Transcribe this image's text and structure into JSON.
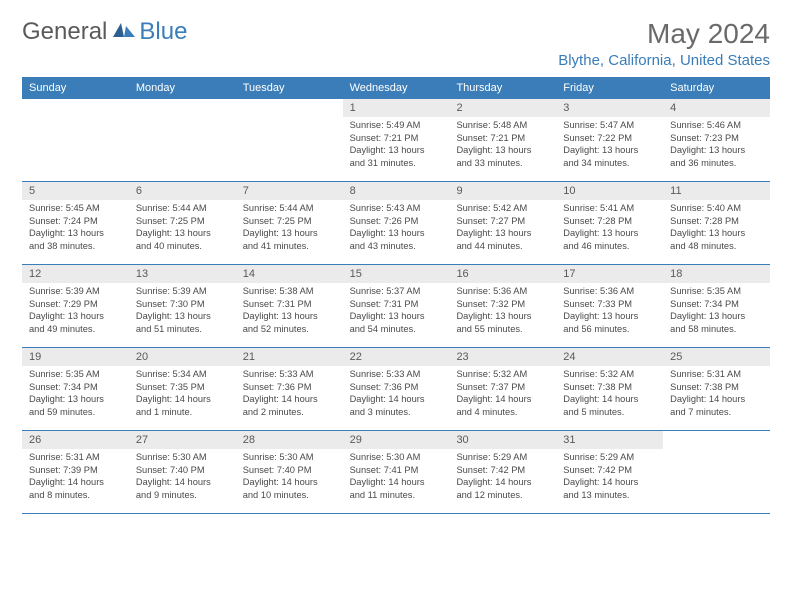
{
  "logo": {
    "text1": "General",
    "text2": "Blue"
  },
  "header": {
    "title": "May 2024",
    "location": "Blythe, California, United States"
  },
  "colors": {
    "accent": "#3a7db8",
    "header_text": "#ffffff",
    "daynum_bg": "#ebebeb",
    "body_text": "#4a4a4a",
    "title_text": "#6a6a6a"
  },
  "day_names": [
    "Sunday",
    "Monday",
    "Tuesday",
    "Wednesday",
    "Thursday",
    "Friday",
    "Saturday"
  ],
  "weeks": [
    [
      null,
      null,
      null,
      {
        "n": "1",
        "rise": "Sunrise: 5:49 AM",
        "set": "Sunset: 7:21 PM",
        "dl1": "Daylight: 13 hours",
        "dl2": "and 31 minutes."
      },
      {
        "n": "2",
        "rise": "Sunrise: 5:48 AM",
        "set": "Sunset: 7:21 PM",
        "dl1": "Daylight: 13 hours",
        "dl2": "and 33 minutes."
      },
      {
        "n": "3",
        "rise": "Sunrise: 5:47 AM",
        "set": "Sunset: 7:22 PM",
        "dl1": "Daylight: 13 hours",
        "dl2": "and 34 minutes."
      },
      {
        "n": "4",
        "rise": "Sunrise: 5:46 AM",
        "set": "Sunset: 7:23 PM",
        "dl1": "Daylight: 13 hours",
        "dl2": "and 36 minutes."
      }
    ],
    [
      {
        "n": "5",
        "rise": "Sunrise: 5:45 AM",
        "set": "Sunset: 7:24 PM",
        "dl1": "Daylight: 13 hours",
        "dl2": "and 38 minutes."
      },
      {
        "n": "6",
        "rise": "Sunrise: 5:44 AM",
        "set": "Sunset: 7:25 PM",
        "dl1": "Daylight: 13 hours",
        "dl2": "and 40 minutes."
      },
      {
        "n": "7",
        "rise": "Sunrise: 5:44 AM",
        "set": "Sunset: 7:25 PM",
        "dl1": "Daylight: 13 hours",
        "dl2": "and 41 minutes."
      },
      {
        "n": "8",
        "rise": "Sunrise: 5:43 AM",
        "set": "Sunset: 7:26 PM",
        "dl1": "Daylight: 13 hours",
        "dl2": "and 43 minutes."
      },
      {
        "n": "9",
        "rise": "Sunrise: 5:42 AM",
        "set": "Sunset: 7:27 PM",
        "dl1": "Daylight: 13 hours",
        "dl2": "and 44 minutes."
      },
      {
        "n": "10",
        "rise": "Sunrise: 5:41 AM",
        "set": "Sunset: 7:28 PM",
        "dl1": "Daylight: 13 hours",
        "dl2": "and 46 minutes."
      },
      {
        "n": "11",
        "rise": "Sunrise: 5:40 AM",
        "set": "Sunset: 7:28 PM",
        "dl1": "Daylight: 13 hours",
        "dl2": "and 48 minutes."
      }
    ],
    [
      {
        "n": "12",
        "rise": "Sunrise: 5:39 AM",
        "set": "Sunset: 7:29 PM",
        "dl1": "Daylight: 13 hours",
        "dl2": "and 49 minutes."
      },
      {
        "n": "13",
        "rise": "Sunrise: 5:39 AM",
        "set": "Sunset: 7:30 PM",
        "dl1": "Daylight: 13 hours",
        "dl2": "and 51 minutes."
      },
      {
        "n": "14",
        "rise": "Sunrise: 5:38 AM",
        "set": "Sunset: 7:31 PM",
        "dl1": "Daylight: 13 hours",
        "dl2": "and 52 minutes."
      },
      {
        "n": "15",
        "rise": "Sunrise: 5:37 AM",
        "set": "Sunset: 7:31 PM",
        "dl1": "Daylight: 13 hours",
        "dl2": "and 54 minutes."
      },
      {
        "n": "16",
        "rise": "Sunrise: 5:36 AM",
        "set": "Sunset: 7:32 PM",
        "dl1": "Daylight: 13 hours",
        "dl2": "and 55 minutes."
      },
      {
        "n": "17",
        "rise": "Sunrise: 5:36 AM",
        "set": "Sunset: 7:33 PM",
        "dl1": "Daylight: 13 hours",
        "dl2": "and 56 minutes."
      },
      {
        "n": "18",
        "rise": "Sunrise: 5:35 AM",
        "set": "Sunset: 7:34 PM",
        "dl1": "Daylight: 13 hours",
        "dl2": "and 58 minutes."
      }
    ],
    [
      {
        "n": "19",
        "rise": "Sunrise: 5:35 AM",
        "set": "Sunset: 7:34 PM",
        "dl1": "Daylight: 13 hours",
        "dl2": "and 59 minutes."
      },
      {
        "n": "20",
        "rise": "Sunrise: 5:34 AM",
        "set": "Sunset: 7:35 PM",
        "dl1": "Daylight: 14 hours",
        "dl2": "and 1 minute."
      },
      {
        "n": "21",
        "rise": "Sunrise: 5:33 AM",
        "set": "Sunset: 7:36 PM",
        "dl1": "Daylight: 14 hours",
        "dl2": "and 2 minutes."
      },
      {
        "n": "22",
        "rise": "Sunrise: 5:33 AM",
        "set": "Sunset: 7:36 PM",
        "dl1": "Daylight: 14 hours",
        "dl2": "and 3 minutes."
      },
      {
        "n": "23",
        "rise": "Sunrise: 5:32 AM",
        "set": "Sunset: 7:37 PM",
        "dl1": "Daylight: 14 hours",
        "dl2": "and 4 minutes."
      },
      {
        "n": "24",
        "rise": "Sunrise: 5:32 AM",
        "set": "Sunset: 7:38 PM",
        "dl1": "Daylight: 14 hours",
        "dl2": "and 5 minutes."
      },
      {
        "n": "25",
        "rise": "Sunrise: 5:31 AM",
        "set": "Sunset: 7:38 PM",
        "dl1": "Daylight: 14 hours",
        "dl2": "and 7 minutes."
      }
    ],
    [
      {
        "n": "26",
        "rise": "Sunrise: 5:31 AM",
        "set": "Sunset: 7:39 PM",
        "dl1": "Daylight: 14 hours",
        "dl2": "and 8 minutes."
      },
      {
        "n": "27",
        "rise": "Sunrise: 5:30 AM",
        "set": "Sunset: 7:40 PM",
        "dl1": "Daylight: 14 hours",
        "dl2": "and 9 minutes."
      },
      {
        "n": "28",
        "rise": "Sunrise: 5:30 AM",
        "set": "Sunset: 7:40 PM",
        "dl1": "Daylight: 14 hours",
        "dl2": "and 10 minutes."
      },
      {
        "n": "29",
        "rise": "Sunrise: 5:30 AM",
        "set": "Sunset: 7:41 PM",
        "dl1": "Daylight: 14 hours",
        "dl2": "and 11 minutes."
      },
      {
        "n": "30",
        "rise": "Sunrise: 5:29 AM",
        "set": "Sunset: 7:42 PM",
        "dl1": "Daylight: 14 hours",
        "dl2": "and 12 minutes."
      },
      {
        "n": "31",
        "rise": "Sunrise: 5:29 AM",
        "set": "Sunset: 7:42 PM",
        "dl1": "Daylight: 14 hours",
        "dl2": "and 13 minutes."
      },
      null
    ]
  ]
}
